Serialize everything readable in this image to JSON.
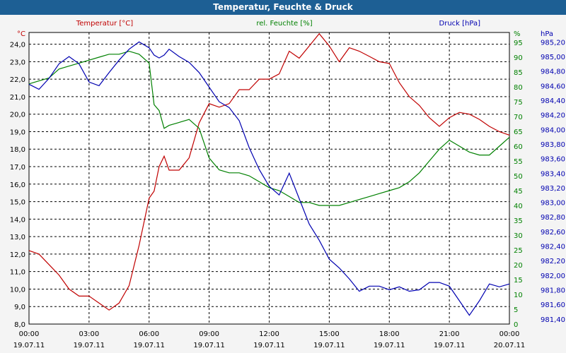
{
  "window": {
    "title": "Temperatur, Feuchte & Druck"
  },
  "colors": {
    "temperature": "#c00000",
    "humidity": "#008000",
    "pressure": "#0000b0",
    "title_bg": "#1d5f94",
    "grid": "#000000"
  },
  "chart_data": {
    "type": "line",
    "title": "Temperatur, Feuchte & Druck",
    "grid": true,
    "x_start": "19.07.11 00:00",
    "x_end": "20.07.11 00:00",
    "x_tick_times": [
      "00:00",
      "03:00",
      "06:00",
      "09:00",
      "12:00",
      "15:00",
      "18:00",
      "21:00",
      "00:00"
    ],
    "x_tick_dates": [
      "19.07.11",
      "19.07.11",
      "19.07.11",
      "19.07.11",
      "19.07.11",
      "19.07.11",
      "19.07.11",
      "19.07.11",
      "20.07.11"
    ],
    "axes": {
      "temperature": {
        "unit": "°C",
        "label": "Temperatur [°C]",
        "ylim": [
          8.0,
          24.67
        ],
        "ticks": [
          "8,0",
          "9,0",
          "10,0",
          "11,0",
          "12,0",
          "13,0",
          "14,0",
          "15,0",
          "16,0",
          "17,0",
          "18,0",
          "19,0",
          "20,0",
          "21,0",
          "22,0",
          "23,0",
          "24,0"
        ]
      },
      "humidity": {
        "unit": "%",
        "label": "rel. Feuchte [%]",
        "ylim": [
          0,
          98.33
        ],
        "ticks": [
          "0",
          "5",
          "10",
          "15",
          "20",
          "25",
          "30",
          "35",
          "40",
          "45",
          "50",
          "55",
          "60",
          "65",
          "70",
          "75",
          "80",
          "85",
          "90",
          "95"
        ]
      },
      "pressure": {
        "unit": "hPa",
        "label": "Druck [hPa]",
        "ylim": [
          981.33,
          985.33
        ],
        "ticks": [
          "981,40",
          "981,60",
          "981,80",
          "982,00",
          "982,20",
          "982,40",
          "982,60",
          "982,80",
          "983,00",
          "983,20",
          "983,40",
          "983,60",
          "983,80",
          "984,00",
          "984,20",
          "984,40",
          "984,60",
          "984,80",
          "985,00",
          "985,20"
        ]
      }
    },
    "series": [
      {
        "name": "Temperatur [°C]",
        "axis": "temperature",
        "color": "#c00000",
        "x": [
          0,
          0.5,
          1,
          1.5,
          2,
          2.5,
          3,
          3.5,
          4,
          4.5,
          5,
          5.5,
          6,
          6.25,
          6.5,
          6.75,
          7,
          7.5,
          8,
          8.5,
          9,
          9.5,
          10,
          10.5,
          11,
          11.5,
          12,
          12.5,
          13,
          13.5,
          14,
          14.5,
          15,
          15.5,
          16,
          16.5,
          17,
          17.5,
          18,
          18.5,
          19,
          19.5,
          20,
          20.5,
          21,
          21.5,
          22,
          22.5,
          23,
          23.5,
          24
        ],
        "values": [
          12.2,
          12.0,
          11.4,
          10.8,
          10.0,
          9.6,
          9.6,
          9.2,
          8.8,
          9.2,
          10.2,
          12.5,
          15.2,
          15.6,
          17.0,
          17.6,
          16.8,
          16.8,
          17.5,
          19.5,
          20.6,
          20.4,
          20.6,
          21.4,
          21.4,
          22.0,
          22.0,
          22.3,
          23.6,
          23.2,
          23.9,
          24.6,
          23.9,
          23.0,
          23.8,
          23.6,
          23.3,
          23.0,
          22.9,
          21.8,
          21.0,
          20.5,
          19.8,
          19.3,
          19.8,
          20.1,
          20.0,
          19.7,
          19.3,
          19.0,
          18.8
        ]
      },
      {
        "name": "rel. Feuchte [%]",
        "axis": "humidity",
        "color": "#008000",
        "x": [
          0,
          0.5,
          1,
          1.5,
          2,
          2.5,
          3,
          3.5,
          4,
          4.5,
          5,
          5.5,
          6,
          6.25,
          6.5,
          6.75,
          7,
          7.5,
          8,
          8.5,
          9,
          9.5,
          10,
          10.5,
          11,
          11.5,
          12,
          12.5,
          13,
          13.5,
          14,
          14.5,
          15,
          15.5,
          16,
          16.5,
          17,
          17.5,
          18,
          18.5,
          19,
          19.5,
          20,
          20.5,
          21,
          21.5,
          22,
          22.5,
          23,
          23.5,
          24
        ],
        "values": [
          81,
          82,
          83,
          86,
          87,
          88,
          89,
          90,
          91,
          91,
          92,
          91,
          88,
          74,
          72,
          66,
          67,
          68,
          69,
          66,
          56,
          52,
          51,
          51,
          50,
          48,
          46,
          45,
          43,
          41,
          41,
          40,
          40,
          40,
          41,
          42,
          43,
          44,
          45,
          46,
          48,
          51,
          55,
          59,
          62,
          60,
          58,
          57,
          57,
          60,
          63
        ]
      },
      {
        "name": "Druck [hPa]",
        "axis": "pressure",
        "color": "#0000b0",
        "x": [
          0,
          0.5,
          1,
          1.5,
          2,
          2.5,
          3,
          3.5,
          4,
          4.5,
          5,
          5.5,
          6,
          6.25,
          6.5,
          6.75,
          7,
          7.5,
          8,
          8.5,
          9,
          9.5,
          10,
          10.5,
          11,
          11.5,
          12,
          12.5,
          13,
          13.5,
          14,
          14.5,
          15,
          15.5,
          16,
          16.5,
          17,
          17.5,
          18,
          18.5,
          19,
          19.5,
          20,
          20.5,
          21,
          21.5,
          22,
          22.5,
          23,
          23.5,
          24
        ],
        "values": [
          984.62,
          984.55,
          984.7,
          984.9,
          985.0,
          984.9,
          984.65,
          984.6,
          984.78,
          984.95,
          985.1,
          985.2,
          985.12,
          985.02,
          984.98,
          985.02,
          985.1,
          985.0,
          984.92,
          984.78,
          984.58,
          984.38,
          984.3,
          984.12,
          983.75,
          983.45,
          983.22,
          983.1,
          983.4,
          983.05,
          982.7,
          982.48,
          982.22,
          982.1,
          981.95,
          981.78,
          981.85,
          981.85,
          981.8,
          981.84,
          981.78,
          981.8,
          981.9,
          981.9,
          981.85,
          981.65,
          981.45,
          981.65,
          981.88,
          981.84,
          981.88
        ]
      }
    ]
  }
}
